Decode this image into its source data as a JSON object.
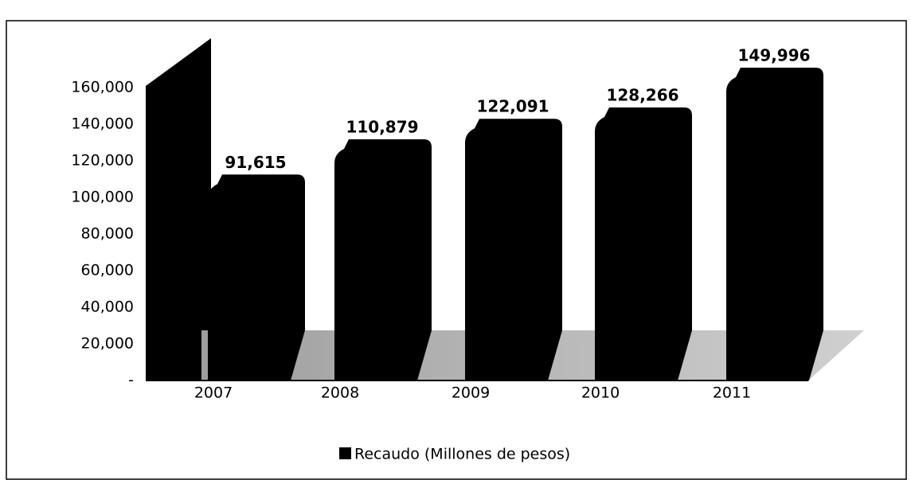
{
  "chart_data": {
    "type": "bar",
    "categories": [
      "2007",
      "2008",
      "2009",
      "2010",
      "2011"
    ],
    "series": [
      {
        "name": "Recaudo (Millones de pesos)",
        "color": "#000000",
        "values": [
          91615,
          110879,
          122091,
          128266,
          149996
        ],
        "value_labels": [
          "91,615",
          "110,879",
          "122,091",
          "128,266",
          "149,996"
        ]
      }
    ],
    "ylim": [
      0,
      160000
    ],
    "yticks": [
      {
        "value": 0,
        "label": "-"
      },
      {
        "value": 20000,
        "label": "20,000"
      },
      {
        "value": 40000,
        "label": "40,000"
      },
      {
        "value": 60000,
        "label": "60,000"
      },
      {
        "value": 80000,
        "label": "80,000"
      },
      {
        "value": 100000,
        "label": "100,000"
      },
      {
        "value": 120000,
        "label": "120,000"
      },
      {
        "value": 140000,
        "label": "140,000"
      },
      {
        "value": 160000,
        "label": "160,000"
      }
    ],
    "legend": "bottom"
  }
}
